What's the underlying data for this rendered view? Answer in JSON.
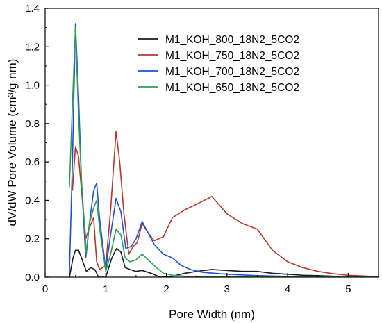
{
  "chart_data": {
    "type": "line",
    "title": "",
    "xlabel": "Pore Width (nm)",
    "ylabel": "dV/dW Pore Volume (cm³/g·nm)",
    "xlim": [
      0,
      5.5
    ],
    "ylim": [
      0,
      1.4
    ],
    "xticks": [
      "0",
      "1",
      "2",
      "3",
      "4",
      "5"
    ],
    "yticks": [
      "0.0",
      "0.2",
      "0.4",
      "0.6",
      "0.8",
      "1.0",
      "1.2",
      "1.4"
    ],
    "xtick_values": [
      0,
      1,
      2,
      3,
      4,
      5
    ],
    "ytick_values": [
      0,
      0.2,
      0.4,
      0.6,
      0.8,
      1.0,
      1.2,
      1.4
    ],
    "grid": false,
    "legend_position": "top-right",
    "series": [
      {
        "name": "M1_KOH_800_18N2_5CO2",
        "color": "#1a1a1a",
        "points": [
          [
            0.4,
            0.0
          ],
          [
            0.46,
            0.1
          ],
          [
            0.5,
            0.14
          ],
          [
            0.55,
            0.14
          ],
          [
            0.6,
            0.1
          ],
          [
            0.68,
            0.03
          ],
          [
            0.75,
            0.05
          ],
          [
            0.82,
            0.04
          ],
          [
            0.88,
            0.0
          ],
          [
            1.0,
            0.0
          ],
          [
            1.1,
            0.1
          ],
          [
            1.18,
            0.15
          ],
          [
            1.25,
            0.13
          ],
          [
            1.32,
            0.05
          ],
          [
            1.4,
            0.04
          ],
          [
            1.5,
            0.03
          ],
          [
            1.6,
            0.035
          ],
          [
            1.75,
            0.02
          ],
          [
            1.9,
            0.0
          ],
          [
            2.1,
            0.005
          ],
          [
            2.3,
            0.02
          ],
          [
            2.5,
            0.03
          ],
          [
            2.75,
            0.04
          ],
          [
            3.0,
            0.035
          ],
          [
            3.25,
            0.03
          ],
          [
            3.5,
            0.03
          ],
          [
            3.75,
            0.02
          ],
          [
            4.0,
            0.015
          ],
          [
            4.25,
            0.01
          ],
          [
            4.5,
            0.008
          ],
          [
            4.75,
            0.005
          ],
          [
            5.0,
            0.003
          ],
          [
            5.5,
            0.001
          ]
        ]
      },
      {
        "name": "M1_KOH_750_18N2_5CO2",
        "color": "#b5382a",
        "points": [
          [
            0.45,
            0.45
          ],
          [
            0.5,
            0.68
          ],
          [
            0.55,
            0.63
          ],
          [
            0.6,
            0.45
          ],
          [
            0.67,
            0.2
          ],
          [
            0.72,
            0.25
          ],
          [
            0.8,
            0.31
          ],
          [
            0.85,
            0.08
          ],
          [
            0.9,
            0.04
          ],
          [
            1.0,
            0.06
          ],
          [
            1.08,
            0.35
          ],
          [
            1.17,
            0.76
          ],
          [
            1.23,
            0.6
          ],
          [
            1.3,
            0.33
          ],
          [
            1.38,
            0.12
          ],
          [
            1.45,
            0.16
          ],
          [
            1.52,
            0.18
          ],
          [
            1.6,
            0.28
          ],
          [
            1.7,
            0.23
          ],
          [
            1.8,
            0.19
          ],
          [
            1.95,
            0.21
          ],
          [
            2.1,
            0.31
          ],
          [
            2.3,
            0.35
          ],
          [
            2.5,
            0.38
          ],
          [
            2.75,
            0.42
          ],
          [
            3.0,
            0.33
          ],
          [
            3.25,
            0.28
          ],
          [
            3.5,
            0.25
          ],
          [
            3.75,
            0.14
          ],
          [
            4.0,
            0.08
          ],
          [
            4.25,
            0.05
          ],
          [
            4.5,
            0.03
          ],
          [
            4.75,
            0.018
          ],
          [
            5.0,
            0.01
          ],
          [
            5.5,
            0.002
          ]
        ]
      },
      {
        "name": "M1_KOH_700_18N2_5CO2",
        "color": "#1f4fd6",
        "points": [
          [
            0.4,
            0.02
          ],
          [
            0.45,
            0.6
          ],
          [
            0.5,
            1.32
          ],
          [
            0.55,
            0.95
          ],
          [
            0.6,
            0.5
          ],
          [
            0.67,
            0.1
          ],
          [
            0.73,
            0.28
          ],
          [
            0.8,
            0.45
          ],
          [
            0.85,
            0.49
          ],
          [
            0.9,
            0.3
          ],
          [
            1.0,
            0.04
          ],
          [
            1.07,
            0.2
          ],
          [
            1.17,
            0.41
          ],
          [
            1.25,
            0.34
          ],
          [
            1.33,
            0.15
          ],
          [
            1.42,
            0.16
          ],
          [
            1.5,
            0.2
          ],
          [
            1.6,
            0.29
          ],
          [
            1.7,
            0.23
          ],
          [
            1.8,
            0.17
          ],
          [
            1.95,
            0.12
          ],
          [
            2.1,
            0.1
          ],
          [
            2.25,
            0.06
          ],
          [
            2.4,
            0.04
          ],
          [
            2.6,
            0.025
          ],
          [
            2.8,
            0.02
          ],
          [
            3.0,
            0.015
          ],
          [
            3.5,
            0.008
          ],
          [
            4.0,
            0.004
          ],
          [
            4.5,
            0.002
          ],
          [
            5.5,
            0.0
          ]
        ]
      },
      {
        "name": "M1_KOH_650_18N2_5CO2",
        "color": "#2e9b50",
        "points": [
          [
            0.4,
            0.47
          ],
          [
            0.45,
            0.9
          ],
          [
            0.5,
            1.3
          ],
          [
            0.55,
            0.85
          ],
          [
            0.6,
            0.5
          ],
          [
            0.68,
            0.12
          ],
          [
            0.73,
            0.28
          ],
          [
            0.8,
            0.36
          ],
          [
            0.85,
            0.4
          ],
          [
            0.9,
            0.25
          ],
          [
            1.0,
            0.03
          ],
          [
            1.08,
            0.12
          ],
          [
            1.17,
            0.25
          ],
          [
            1.25,
            0.22
          ],
          [
            1.32,
            0.1
          ],
          [
            1.4,
            0.08
          ],
          [
            1.5,
            0.09
          ],
          [
            1.6,
            0.12
          ],
          [
            1.7,
            0.09
          ],
          [
            1.8,
            0.06
          ],
          [
            1.95,
            0.02
          ],
          [
            2.1,
            0.01
          ],
          [
            2.3,
            0.005
          ],
          [
            2.6,
            0.002
          ],
          [
            3.0,
            0.001
          ],
          [
            5.5,
            0.0
          ]
        ]
      }
    ]
  }
}
